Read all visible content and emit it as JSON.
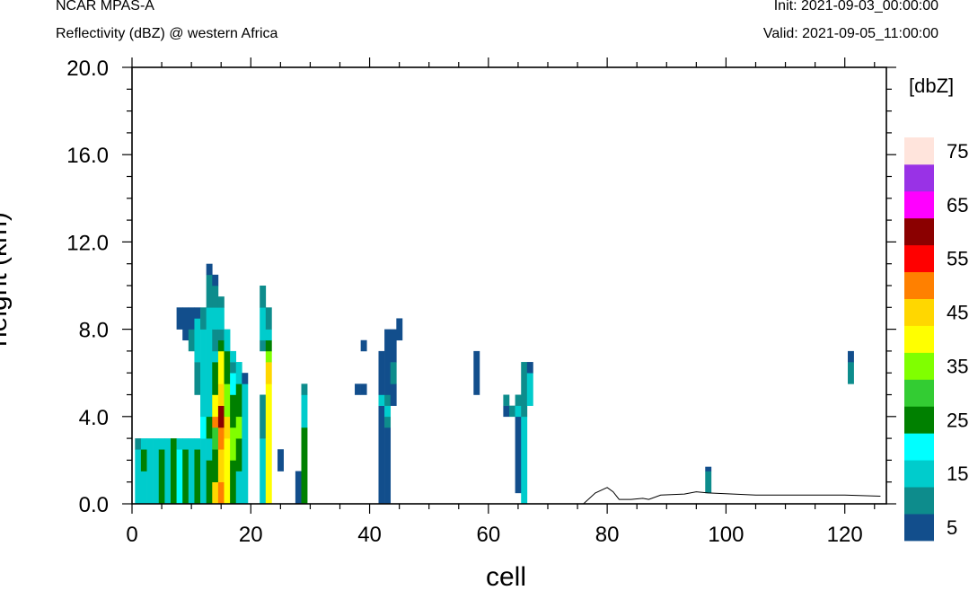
{
  "header": {
    "model": "NCAR MPAS-A",
    "field": "Reflectivity (dBZ) @ western Africa",
    "init": "Init: 2021-09-03_00:00:00",
    "valid": "Valid: 2021-09-05_11:00:00"
  },
  "chart_data": {
    "type": "heatmap",
    "xlabel": "cell",
    "ylabel": "height (km)",
    "xlim": [
      0,
      127
    ],
    "ylim": [
      0,
      20
    ],
    "xticks": [
      0,
      20,
      40,
      60,
      80,
      100,
      120
    ],
    "yticks": [
      0.0,
      4.0,
      8.0,
      12.0,
      16.0,
      20.0
    ],
    "ytick_labels": [
      "0.0",
      "4.0",
      "8.0",
      "12.0",
      "16.0",
      "20.0"
    ],
    "dz_km": 0.5,
    "colorbar": {
      "title": "[dbZ]",
      "levels": [
        5,
        10,
        15,
        20,
        25,
        30,
        35,
        40,
        45,
        50,
        55,
        60,
        65,
        70,
        75
      ],
      "label_values": [
        5,
        15,
        25,
        35,
        45,
        55,
        65,
        75
      ],
      "colors": [
        "#124e8c",
        "#0d8c8c",
        "#00cccc",
        "#00ffff",
        "#008000",
        "#33cc33",
        "#80ff00",
        "#ffff00",
        "#ffd700",
        "#ff8000",
        "#ff0000",
        "#8b0000",
        "#ff00ff",
        "#9932e6",
        "#ffe4dc"
      ]
    },
    "columns": [
      {
        "cell": 1,
        "segments": [
          [
            0.0,
            2.5,
            15
          ],
          [
            2.5,
            3.0,
            10
          ]
        ]
      },
      {
        "cell": 2,
        "segments": [
          [
            0.0,
            1.5,
            15
          ],
          [
            1.5,
            2.5,
            25
          ],
          [
            2.5,
            3.0,
            15
          ]
        ]
      },
      {
        "cell": 3,
        "segments": [
          [
            0.0,
            3.0,
            15
          ]
        ]
      },
      {
        "cell": 4,
        "segments": [
          [
            0.0,
            3.0,
            15
          ]
        ]
      },
      {
        "cell": 5,
        "segments": [
          [
            0.0,
            2.5,
            25
          ],
          [
            2.5,
            3.0,
            15
          ]
        ]
      },
      {
        "cell": 6,
        "segments": [
          [
            0.0,
            1.0,
            15
          ],
          [
            1.0,
            3.0,
            15
          ]
        ]
      },
      {
        "cell": 7,
        "segments": [
          [
            0.0,
            3.0,
            25
          ]
        ]
      },
      {
        "cell": 8,
        "segments": [
          [
            0.0,
            2.5,
            20
          ],
          [
            2.5,
            3.0,
            15
          ],
          [
            8.0,
            9.0,
            5
          ]
        ]
      },
      {
        "cell": 9,
        "segments": [
          [
            0.0,
            2.5,
            25
          ],
          [
            2.5,
            3.0,
            15
          ],
          [
            7.5,
            9.0,
            5
          ]
        ]
      },
      {
        "cell": 10,
        "segments": [
          [
            0.0,
            3.0,
            15
          ],
          [
            7.0,
            8.0,
            10
          ],
          [
            8.0,
            9.0,
            5
          ]
        ]
      },
      {
        "cell": 11,
        "segments": [
          [
            0.0,
            2.5,
            25
          ],
          [
            2.5,
            3.0,
            15
          ],
          [
            5.0,
            6.5,
            10
          ],
          [
            6.5,
            8.5,
            15
          ],
          [
            8.5,
            9.0,
            5
          ]
        ]
      },
      {
        "cell": 12,
        "segments": [
          [
            0.0,
            3.0,
            15
          ],
          [
            3.0,
            4.0,
            20
          ],
          [
            4.0,
            5.5,
            15
          ],
          [
            5.5,
            8.0,
            15
          ],
          [
            8.0,
            9.0,
            10
          ]
        ]
      },
      {
        "cell": 13,
        "segments": [
          [
            0.0,
            1.0,
            25
          ],
          [
            1.0,
            2.0,
            25
          ],
          [
            2.0,
            3.0,
            15
          ],
          [
            3.0,
            4.0,
            25
          ],
          [
            4.0,
            5.0,
            15
          ],
          [
            5.0,
            8.0,
            15
          ],
          [
            8.0,
            9.0,
            15
          ],
          [
            9.0,
            10.5,
            10
          ],
          [
            10.5,
            11.0,
            5
          ]
        ]
      },
      {
        "cell": 14,
        "segments": [
          [
            0.0,
            1.0,
            45
          ],
          [
            1.0,
            2.5,
            25
          ],
          [
            2.5,
            3.5,
            30
          ],
          [
            3.5,
            4.0,
            50
          ],
          [
            4.0,
            5.0,
            40
          ],
          [
            5.0,
            6.5,
            25
          ],
          [
            6.5,
            7.0,
            15
          ],
          [
            7.0,
            8.0,
            10
          ],
          [
            8.0,
            9.0,
            15
          ],
          [
            9.0,
            10.0,
            10
          ],
          [
            10.0,
            10.5,
            5
          ]
        ]
      },
      {
        "cell": 15,
        "segments": [
          [
            0.0,
            1.0,
            50
          ],
          [
            1.0,
            2.5,
            45
          ],
          [
            2.5,
            3.5,
            50
          ],
          [
            3.5,
            4.5,
            60
          ],
          [
            4.5,
            5.5,
            45
          ],
          [
            5.5,
            7.0,
            40
          ],
          [
            7.0,
            7.5,
            25
          ],
          [
            7.5,
            8.0,
            10
          ],
          [
            8.0,
            9.0,
            15
          ],
          [
            9.0,
            9.5,
            10
          ]
        ]
      },
      {
        "cell": 16,
        "segments": [
          [
            0.0,
            3.0,
            40
          ],
          [
            3.0,
            4.0,
            45
          ],
          [
            4.0,
            5.5,
            35
          ],
          [
            5.5,
            7.0,
            25
          ],
          [
            7.0,
            8.0,
            15
          ]
        ]
      },
      {
        "cell": 17,
        "segments": [
          [
            0.0,
            2.0,
            25
          ],
          [
            2.0,
            3.5,
            35
          ],
          [
            3.5,
            5.0,
            25
          ],
          [
            5.0,
            6.0,
            20
          ],
          [
            6.0,
            6.5,
            10
          ],
          [
            6.5,
            7.0,
            15
          ]
        ]
      },
      {
        "cell": 18,
        "segments": [
          [
            0.0,
            1.5,
            15
          ],
          [
            1.5,
            3.0,
            25
          ],
          [
            3.0,
            4.0,
            35
          ],
          [
            4.0,
            5.5,
            25
          ],
          [
            5.5,
            6.5,
            15
          ]
        ]
      },
      {
        "cell": 19,
        "segments": [
          [
            0.0,
            3.0,
            15
          ],
          [
            3.0,
            5.5,
            15
          ],
          [
            5.5,
            6.0,
            5
          ]
        ]
      },
      {
        "cell": 22,
        "segments": [
          [
            0.0,
            3.0,
            15
          ],
          [
            3.0,
            5.0,
            10
          ],
          [
            7.0,
            7.5,
            10
          ],
          [
            7.5,
            9.0,
            15
          ],
          [
            9.0,
            10.0,
            10
          ]
        ]
      },
      {
        "cell": 23,
        "segments": [
          [
            0.0,
            3.0,
            40
          ],
          [
            3.0,
            5.5,
            40
          ],
          [
            5.5,
            6.5,
            45
          ],
          [
            6.5,
            7.0,
            35
          ],
          [
            7.0,
            7.5,
            25
          ],
          [
            7.5,
            8.0,
            15
          ],
          [
            8.0,
            9.0,
            10
          ]
        ]
      },
      {
        "cell": 25,
        "segments": [
          [
            1.5,
            2.5,
            5
          ]
        ]
      },
      {
        "cell": 28,
        "segments": [
          [
            0.0,
            1.5,
            5
          ]
        ]
      },
      {
        "cell": 29,
        "segments": [
          [
            0.0,
            3.5,
            25
          ],
          [
            3.5,
            5.0,
            15
          ],
          [
            5.0,
            5.5,
            10
          ]
        ]
      },
      {
        "cell": 38,
        "segments": [
          [
            5.0,
            5.5,
            5
          ]
        ]
      },
      {
        "cell": 39,
        "segments": [
          [
            5.0,
            5.5,
            5
          ],
          [
            7.0,
            7.5,
            5
          ]
        ]
      },
      {
        "cell": 42,
        "segments": [
          [
            0.0,
            4.5,
            5
          ],
          [
            4.5,
            5.0,
            15
          ],
          [
            5.0,
            7.0,
            5
          ]
        ]
      },
      {
        "cell": 43,
        "segments": [
          [
            0.0,
            3.5,
            5
          ],
          [
            3.5,
            4.0,
            10
          ],
          [
            4.0,
            4.5,
            15
          ],
          [
            4.5,
            5.0,
            10
          ],
          [
            5.0,
            8.0,
            5
          ]
        ]
      },
      {
        "cell": 44,
        "segments": [
          [
            4.5,
            5.5,
            5
          ],
          [
            5.5,
            6.5,
            10
          ],
          [
            6.5,
            8.0,
            5
          ]
        ]
      },
      {
        "cell": 45,
        "segments": [
          [
            7.5,
            8.5,
            5
          ]
        ]
      },
      {
        "cell": 58,
        "segments": [
          [
            5.0,
            7.0,
            5
          ]
        ]
      },
      {
        "cell": 63,
        "segments": [
          [
            4.0,
            4.5,
            5
          ],
          [
            4.5,
            5.0,
            10
          ]
        ]
      },
      {
        "cell": 64,
        "segments": [
          [
            4.0,
            4.5,
            10
          ]
        ]
      },
      {
        "cell": 65,
        "segments": [
          [
            0.5,
            4.0,
            5
          ],
          [
            4.0,
            4.5,
            15
          ],
          [
            4.5,
            5.0,
            10
          ]
        ]
      },
      {
        "cell": 66,
        "segments": [
          [
            0.0,
            0.5,
            15
          ],
          [
            0.5,
            4.0,
            15
          ],
          [
            4.0,
            6.5,
            10
          ]
        ]
      },
      {
        "cell": 67,
        "segments": [
          [
            4.5,
            6.0,
            15
          ],
          [
            6.0,
            6.5,
            5
          ]
        ]
      },
      {
        "cell": 97,
        "segments": [
          [
            0.5,
            1.5,
            10
          ],
          [
            1.5,
            1.7,
            5
          ]
        ]
      },
      {
        "cell": 121,
        "segments": [
          [
            5.5,
            6.5,
            10
          ],
          [
            6.5,
            7.0,
            5
          ]
        ]
      }
    ],
    "terrain": [
      [
        0,
        0.0
      ],
      [
        76,
        0.0
      ],
      [
        78,
        0.5
      ],
      [
        80,
        0.75
      ],
      [
        81,
        0.55
      ],
      [
        82,
        0.2
      ],
      [
        84,
        0.2
      ],
      [
        86,
        0.25
      ],
      [
        87,
        0.2
      ],
      [
        89,
        0.4
      ],
      [
        93,
        0.45
      ],
      [
        95,
        0.55
      ],
      [
        97,
        0.5
      ],
      [
        105,
        0.4
      ],
      [
        115,
        0.4
      ],
      [
        120,
        0.4
      ],
      [
        126,
        0.35
      ]
    ]
  }
}
